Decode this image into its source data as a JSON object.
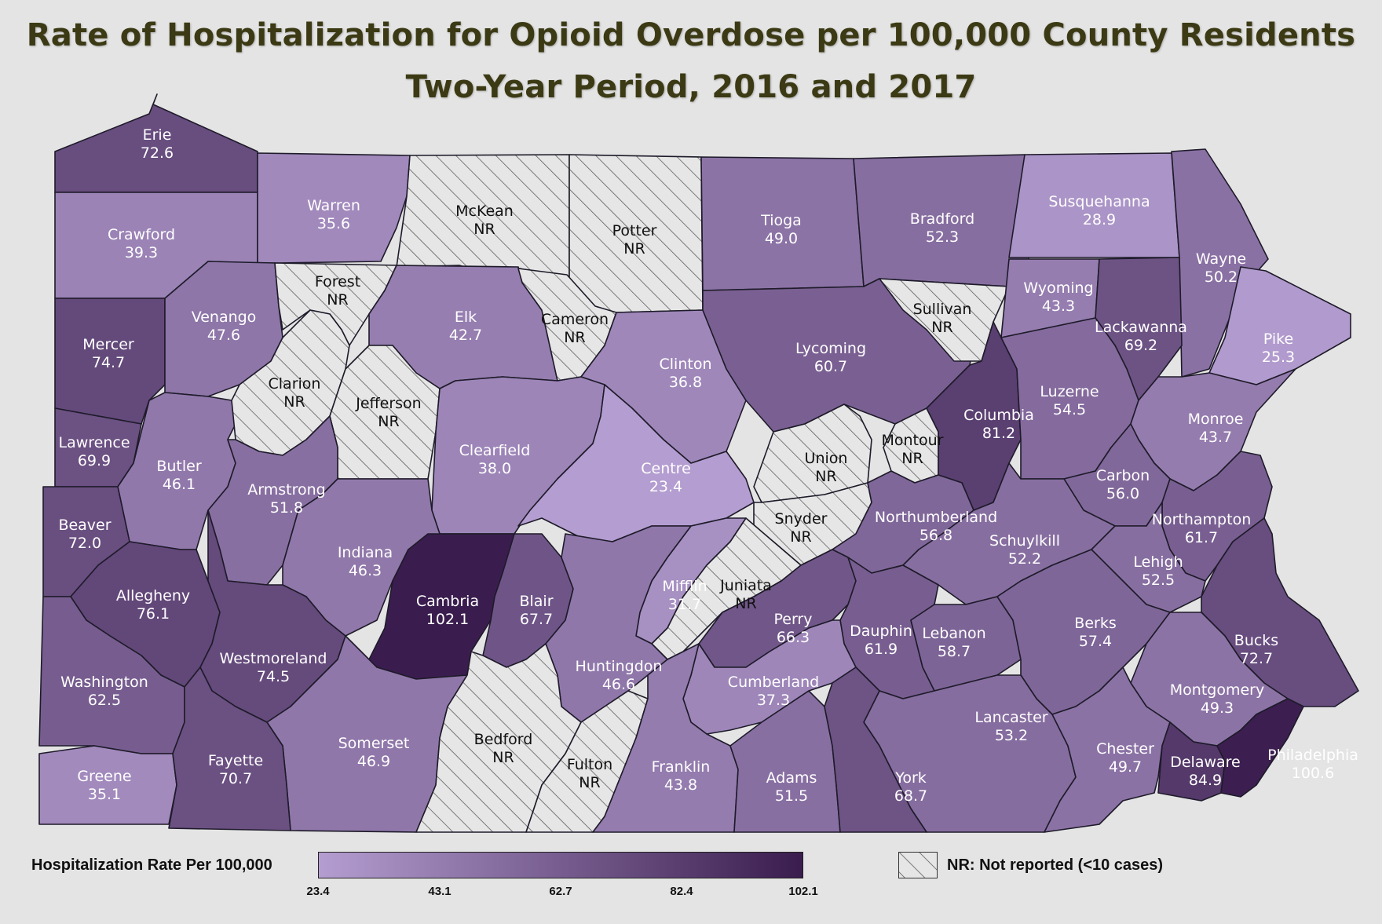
{
  "title_line1": "Rate of Hospitalization for Opioid Overdose per 100,000 County Residents",
  "title_line2": "Two-Year Period, 2016 and 2017",
  "legend": {
    "title": "Hospitalization Rate Per 100,000",
    "ticks": [
      "23.4",
      "43.1",
      "62.7",
      "82.4",
      "102.1"
    ],
    "min": 23.4,
    "max": 102.1,
    "color_low": "#b49dd0",
    "color_high": "#3a1d4e",
    "nr_label": "NR: Not reported (<10 cases)",
    "nr_fill": "#e6e6e6",
    "nr_hatch": "#555555"
  },
  "counties": [
    {
      "name": "Erie",
      "value": 72.6,
      "display": "72.6"
    },
    {
      "name": "Crawford",
      "value": 39.3,
      "display": "39.3"
    },
    {
      "name": "Warren",
      "value": 35.6,
      "display": "35.6"
    },
    {
      "name": "McKean",
      "value": null,
      "display": "NR"
    },
    {
      "name": "Potter",
      "value": null,
      "display": "NR"
    },
    {
      "name": "Tioga",
      "value": 49.0,
      "display": "49.0"
    },
    {
      "name": "Bradford",
      "value": 52.3,
      "display": "52.3"
    },
    {
      "name": "Susquehanna",
      "value": 28.9,
      "display": "28.9"
    },
    {
      "name": "Wayne",
      "value": 50.2,
      "display": "50.2"
    },
    {
      "name": "Mercer",
      "value": 74.7,
      "display": "74.7"
    },
    {
      "name": "Venango",
      "value": 47.6,
      "display": "47.6"
    },
    {
      "name": "Forest",
      "value": null,
      "display": "NR"
    },
    {
      "name": "Elk",
      "value": 42.7,
      "display": "42.7"
    },
    {
      "name": "Cameron",
      "value": null,
      "display": "NR"
    },
    {
      "name": "Clinton",
      "value": 36.8,
      "display": "36.8"
    },
    {
      "name": "Lycoming",
      "value": 60.7,
      "display": "60.7"
    },
    {
      "name": "Sullivan",
      "value": null,
      "display": "NR"
    },
    {
      "name": "Wyoming",
      "value": 43.3,
      "display": "43.3"
    },
    {
      "name": "Lackawanna",
      "value": 69.2,
      "display": "69.2"
    },
    {
      "name": "Pike",
      "value": 25.3,
      "display": "25.3"
    },
    {
      "name": "Lawrence",
      "value": 69.9,
      "display": "69.9"
    },
    {
      "name": "Butler",
      "value": 46.1,
      "display": "46.1"
    },
    {
      "name": "Clarion",
      "value": null,
      "display": "NR"
    },
    {
      "name": "Jefferson",
      "value": null,
      "display": "NR"
    },
    {
      "name": "Clearfield",
      "value": 38.0,
      "display": "38.0"
    },
    {
      "name": "Centre",
      "value": 23.4,
      "display": "23.4"
    },
    {
      "name": "Union",
      "value": null,
      "display": "NR"
    },
    {
      "name": "Montour",
      "value": null,
      "display": "NR"
    },
    {
      "name": "Columbia",
      "value": 81.2,
      "display": "81.2"
    },
    {
      "name": "Luzerne",
      "value": 54.5,
      "display": "54.5"
    },
    {
      "name": "Monroe",
      "value": 43.7,
      "display": "43.7"
    },
    {
      "name": "Carbon",
      "value": 56.0,
      "display": "56.0"
    },
    {
      "name": "Beaver",
      "value": 72.0,
      "display": "72.0"
    },
    {
      "name": "Armstrong",
      "value": 51.8,
      "display": "51.8"
    },
    {
      "name": "Indiana",
      "value": 46.3,
      "display": "46.3"
    },
    {
      "name": "Snyder",
      "value": null,
      "display": "NR"
    },
    {
      "name": "Northumberland",
      "value": 56.8,
      "display": "56.8"
    },
    {
      "name": "Schuylkill",
      "value": 52.2,
      "display": "52.2"
    },
    {
      "name": "Northampton",
      "value": 61.7,
      "display": "61.7"
    },
    {
      "name": "Lehigh",
      "value": 52.5,
      "display": "52.5"
    },
    {
      "name": "Allegheny",
      "value": 76.1,
      "display": "76.1"
    },
    {
      "name": "Cambria",
      "value": 102.1,
      "display": "102.1"
    },
    {
      "name": "Blair",
      "value": 67.7,
      "display": "67.7"
    },
    {
      "name": "Mifflin",
      "value": 31.7,
      "display": "31.7"
    },
    {
      "name": "Juniata",
      "value": null,
      "display": "NR"
    },
    {
      "name": "Westmoreland",
      "value": 74.5,
      "display": "74.5"
    },
    {
      "name": "Huntingdon",
      "value": 46.6,
      "display": "46.6"
    },
    {
      "name": "Perry",
      "value": 66.3,
      "display": "66.3"
    },
    {
      "name": "Dauphin",
      "value": 61.9,
      "display": "61.9"
    },
    {
      "name": "Lebanon",
      "value": 58.7,
      "display": "58.7"
    },
    {
      "name": "Berks",
      "value": 57.4,
      "display": "57.4"
    },
    {
      "name": "Bucks",
      "value": 72.7,
      "display": "72.7"
    },
    {
      "name": "Washington",
      "value": 62.5,
      "display": "62.5"
    },
    {
      "name": "Cumberland",
      "value": 37.3,
      "display": "37.3"
    },
    {
      "name": "Montgomery",
      "value": 49.3,
      "display": "49.3"
    },
    {
      "name": "Lancaster",
      "value": 53.2,
      "display": "53.2"
    },
    {
      "name": "Somerset",
      "value": 46.9,
      "display": "46.9"
    },
    {
      "name": "Bedford",
      "value": null,
      "display": "NR"
    },
    {
      "name": "Fulton",
      "value": null,
      "display": "NR"
    },
    {
      "name": "Franklin",
      "value": 43.8,
      "display": "43.8"
    },
    {
      "name": "Adams",
      "value": 51.5,
      "display": "51.5"
    },
    {
      "name": "York",
      "value": 68.7,
      "display": "68.7"
    },
    {
      "name": "Chester",
      "value": 49.7,
      "display": "49.7"
    },
    {
      "name": "Delaware",
      "value": 84.9,
      "display": "84.9"
    },
    {
      "name": "Philadelphia",
      "value": 100.6,
      "display": "100.6"
    },
    {
      "name": "Greene",
      "value": 35.1,
      "display": "35.1"
    },
    {
      "name": "Fayette",
      "value": 70.7,
      "display": "70.7"
    }
  ]
}
